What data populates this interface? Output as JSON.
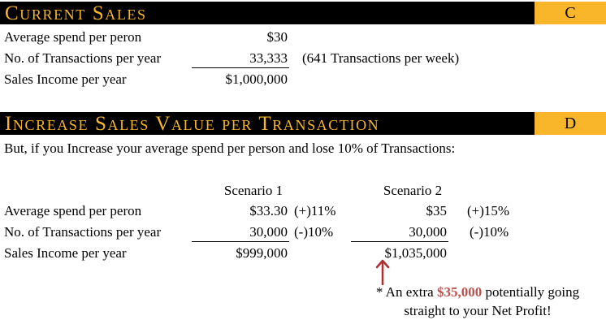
{
  "section_c": {
    "title": "Current Sales",
    "tag": "C",
    "rows": [
      {
        "label": "Average spend per peron",
        "value": "$30",
        "note": ""
      },
      {
        "label": "No. of Transactions per year",
        "value": "33,333",
        "note": "(641 Transactions per week)"
      },
      {
        "label": "Sales Income per year",
        "value": "$1,000,000",
        "note": ""
      }
    ]
  },
  "section_d": {
    "title": "Increase Sales Value per Transaction",
    "tag": "D",
    "intro": "But, if you Increase your average spend per person and lose 10% of Transactions:",
    "scenario1_header": "Scenario 1",
    "scenario2_header": "Scenario 2",
    "rows": [
      {
        "label": "Average spend per peron",
        "s1_value": "$33.30",
        "s1_change": "(+)11%",
        "s2_value": "$35",
        "s2_change": "(+)15%"
      },
      {
        "label": "No. of Transactions per year",
        "s1_value": "30,000",
        "s1_change": "(-)10%",
        "s2_value": "30,000",
        "s2_change": "(-)10%"
      },
      {
        "label": "Sales Income per year",
        "s1_value": "$999,000",
        "s1_change": "",
        "s2_value": "$1,035,000",
        "s2_change": ""
      }
    ]
  },
  "callout": {
    "prefix": "* An extra ",
    "highlight": "$35,000",
    "suffix": " potentially going",
    "line2": "straight to your Net Profit!",
    "highlight_color": "#c0504d"
  },
  "colors": {
    "header_background": "#000000",
    "header_text": "#f9b62b",
    "tag_background": "#f9b62b",
    "arrow": "#b22d2d"
  }
}
